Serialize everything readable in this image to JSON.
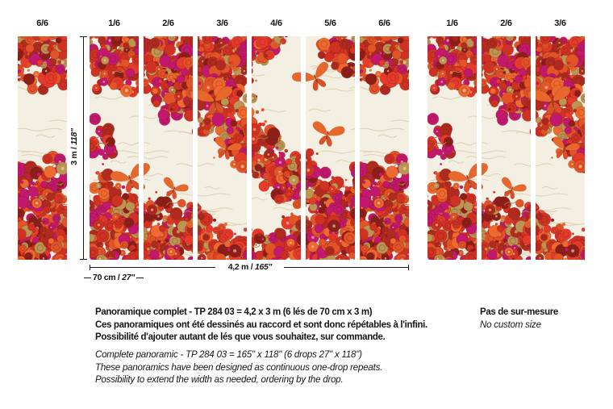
{
  "panel_groups": [
    {
      "name": "left-partial-strip",
      "labels": [
        "6/6"
      ]
    },
    {
      "name": "complete-panoramic",
      "labels": [
        "1/6",
        "2/6",
        "3/6",
        "4/6",
        "5/6",
        "6/6"
      ]
    },
    {
      "name": "right-repeat-strips",
      "labels": [
        "1/6",
        "2/6",
        "3/6"
      ]
    }
  ],
  "dimensions": {
    "height": {
      "metric": "3 m / ",
      "imperial": "118\""
    },
    "total_width": {
      "metric": "4,2 m / ",
      "imperial": "165\""
    },
    "strip_width": {
      "metric": "70 cm / ",
      "imperial": "27\""
    }
  },
  "description_fr": {
    "lines": [
      "Panoramique complet - TP 284 03 = 4,2 x 3 m (6 lés de 70 cm x 3 m)",
      "Ces panoramiques ont été dessinés au raccord et sont donc répétables à l'infini.",
      "Possibilité d'ajouter autant de lés que vous souhaitez, sur commande."
    ]
  },
  "description_en": {
    "lines": [
      "Complete panoramic - TP 284 03 = 165\" x 118\" (6 drops 27\" x 118\")",
      "These panoramics have been designed as continuous one-drop repeats.",
      "Possibility to extend the width as needed, ordering by the drop."
    ]
  },
  "availability_note": {
    "fr": "Pas de sur-mesure",
    "en": "No custom size"
  },
  "artwork": {
    "background": "#f4efe3",
    "cloud_line": "#d9cca8",
    "butterfly_upper": "#e8672c",
    "butterfly_lower": "#d8512a",
    "flower_palette": [
      "#cf3122",
      "#b02b1f",
      "#e25427",
      "#ef6a2f",
      "#c2186e",
      "#8d1f1a",
      "#bb9551",
      "#e63b2b"
    ]
  }
}
